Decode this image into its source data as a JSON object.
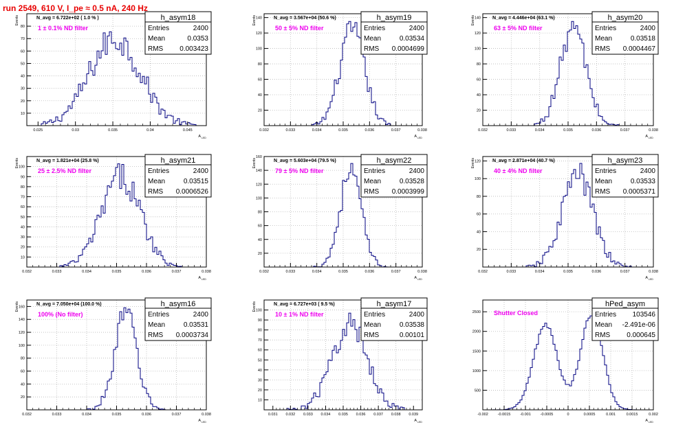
{
  "run_title": "run 2549,   610 V, I_pe ≈ 0.5 nA, 240 Hz",
  "colors": {
    "title": "#e80000",
    "annotation": "#ee00ee",
    "histogram": "#000080",
    "grid": "#b8b8b8",
    "frame": "#000000"
  },
  "stat_labels": {
    "entries": "Entries",
    "mean": "Mean",
    "rms": "RMS"
  },
  "chart_data": [
    {
      "type": "histogram",
      "name": "h_asym18",
      "ylabel": "Events",
      "xlabel": "A",
      "xlabel_sub": "LED",
      "nlabel": "N_avg = 6.722e+02 ( 1.0 % )",
      "filter": "1 ± 0.1% ND filter",
      "xlim": [
        0.0235,
        0.0475
      ],
      "xticks": [
        "0.025",
        "0.03",
        "0.035",
        "0.04",
        "0.045"
      ],
      "xtick_values": [
        0.025,
        0.03,
        0.035,
        0.04,
        0.045
      ],
      "ylim": [
        0,
        90
      ],
      "yticks": [
        "10",
        "20",
        "30",
        "40",
        "50",
        "60",
        "70",
        "80"
      ],
      "ytick_values": [
        10,
        20,
        30,
        40,
        50,
        60,
        70,
        80
      ],
      "entries": "2400",
      "mean": "0.0353",
      "rms": "0.003423",
      "grid": true,
      "shape": [
        {
          "mu": 0.0353,
          "sigma": 0.0034,
          "amp": 70
        }
      ],
      "max_y": 80,
      "x_range": [
        0.0255,
        0.0465
      ]
    },
    {
      "type": "histogram",
      "name": "h_asym19",
      "ylabel": "Events",
      "xlabel": "A",
      "xlabel_sub": "LED",
      "nlabel": "N_avg = 3.567e+04 (50.6 %)",
      "filter": "50 ± 5% ND filter",
      "xlim": [
        0.032,
        0.038
      ],
      "xticks": [
        "0.032",
        "0.033",
        "0.034",
        "0.035",
        "0.036",
        "0.037",
        "0.038"
      ],
      "xtick_values": [
        0.032,
        0.033,
        0.034,
        0.035,
        0.036,
        0.037,
        0.038
      ],
      "ylim": [
        0,
        145
      ],
      "yticks": [
        "20",
        "40",
        "60",
        "80",
        "100",
        "120",
        "140"
      ],
      "ytick_values": [
        20,
        40,
        60,
        80,
        100,
        120,
        140
      ],
      "entries": "2400",
      "mean": "0.03534",
      "rms": "0.0004699",
      "grid": true,
      "shape": [
        {
          "mu": 0.03534,
          "sigma": 0.00047,
          "amp": 124
        }
      ],
      "max_y": 135,
      "x_range": [
        0.0338,
        0.0368
      ]
    },
    {
      "type": "histogram",
      "name": "h_asym20",
      "ylabel": "Events",
      "xlabel": "A",
      "xlabel_sub": "LED",
      "nlabel": "N_avg = 4.446e+04 (63.1 %)",
      "filter": "63 ± 5% ND filter",
      "xlim": [
        0.032,
        0.038
      ],
      "xticks": [
        "0.032",
        "0.033",
        "0.034",
        "0.035",
        "0.036",
        "0.037",
        "0.038"
      ],
      "xtick_values": [
        0.032,
        0.033,
        0.034,
        0.035,
        0.036,
        0.037,
        0.038
      ],
      "ylim": [
        0,
        145
      ],
      "yticks": [
        "20",
        "40",
        "60",
        "80",
        "100",
        "120",
        "140"
      ],
      "ytick_values": [
        20,
        40,
        60,
        80,
        100,
        120,
        140
      ],
      "entries": "2400",
      "mean": "0.03518",
      "rms": "0.0004467",
      "grid": true,
      "shape": [
        {
          "mu": 0.03518,
          "sigma": 0.00045,
          "amp": 128
        }
      ],
      "max_y": 135,
      "x_range": [
        0.0338,
        0.0368
      ]
    },
    {
      "type": "histogram",
      "name": "h_asym21",
      "ylabel": "Events",
      "xlabel": "A",
      "xlabel_sub": "LED",
      "nlabel": "N_avg = 1.821e+04 (25.8 %)",
      "filter": "25 ± 2.5% ND filter",
      "xlim": [
        0.032,
        0.038
      ],
      "xticks": [
        "0.032",
        "0.033",
        "0.034",
        "0.035",
        "0.036",
        "0.037",
        "0.038"
      ],
      "xtick_values": [
        0.032,
        0.033,
        0.034,
        0.035,
        0.036,
        0.037,
        0.038
      ],
      "ylim": [
        0,
        110
      ],
      "yticks": [
        "10",
        "20",
        "30",
        "40",
        "50",
        "60",
        "70",
        "80",
        "90",
        "100"
      ],
      "ytick_values": [
        10,
        20,
        30,
        40,
        50,
        60,
        70,
        80,
        90,
        100
      ],
      "entries": "2400",
      "mean": "0.03515",
      "rms": "0.0006526",
      "grid": true,
      "shape": [
        {
          "mu": 0.03515,
          "sigma": 0.00065,
          "amp": 90
        }
      ],
      "max_y": 105,
      "x_range": [
        0.0331,
        0.0372
      ]
    },
    {
      "type": "histogram",
      "name": "h_asym22",
      "ylabel": "Events",
      "xlabel": "A",
      "xlabel_sub": "LED",
      "nlabel": "N_avg = 5.603e+04 (79.5 %)",
      "filter": "79 ± 5% ND filter",
      "xlim": [
        0.032,
        0.038
      ],
      "xticks": [
        "0.032",
        "0.033",
        "0.034",
        "0.035",
        "0.036",
        "0.037",
        "0.038"
      ],
      "xtick_values": [
        0.032,
        0.033,
        0.034,
        0.035,
        0.036,
        0.037,
        0.038
      ],
      "ylim": [
        0,
        160
      ],
      "yticks": [
        "20",
        "40",
        "60",
        "80",
        "100",
        "120",
        "140",
        "160"
      ],
      "ytick_values": [
        20,
        40,
        60,
        80,
        100,
        120,
        140,
        160
      ],
      "entries": "2400",
      "mean": "0.03528",
      "rms": "0.0003999",
      "grid": true,
      "shape": [
        {
          "mu": 0.03528,
          "sigma": 0.0004,
          "amp": 140
        }
      ],
      "max_y": 150,
      "x_range": [
        0.0339,
        0.0367
      ]
    },
    {
      "type": "histogram",
      "name": "h_asym23",
      "ylabel": "Events",
      "xlabel": "A",
      "xlabel_sub": "LED",
      "nlabel": "N_avg = 2.871e+04 (40.7 %)",
      "filter": "40 ± 4% ND filter",
      "xlim": [
        0.032,
        0.038
      ],
      "xticks": [
        "0.032",
        "0.033",
        "0.034",
        "0.035",
        "0.036",
        "0.037",
        "0.038"
      ],
      "xtick_values": [
        0.032,
        0.033,
        0.034,
        0.035,
        0.036,
        0.037,
        0.038
      ],
      "ylim": [
        0,
        125
      ],
      "yticks": [
        "20",
        "40",
        "60",
        "80",
        "100",
        "120"
      ],
      "ytick_values": [
        20,
        40,
        60,
        80,
        100,
        120
      ],
      "entries": "2400",
      "mean": "0.03533",
      "rms": "0.0005371",
      "grid": true,
      "shape": [
        {
          "mu": 0.03533,
          "sigma": 0.00054,
          "amp": 105
        }
      ],
      "max_y": 118,
      "x_range": [
        0.0335,
        0.0372
      ]
    },
    {
      "type": "histogram",
      "name": "h_asym16",
      "ylabel": "Events",
      "xlabel": "A",
      "xlabel_sub": "LED",
      "nlabel": "N_avg = 7.050e+04 (100.0 %)",
      "filter": "100% (No filter)",
      "xlim": [
        0.032,
        0.038
      ],
      "xticks": [
        "0.032",
        "0.033",
        "0.034",
        "0.035",
        "0.036",
        "0.037",
        "0.038"
      ],
      "xtick_values": [
        0.032,
        0.033,
        0.034,
        0.035,
        0.036,
        0.037,
        0.038
      ],
      "ylim": [
        0,
        170
      ],
      "yticks": [
        "20",
        "40",
        "60",
        "80",
        "100",
        "120",
        "140",
        "160"
      ],
      "ytick_values": [
        20,
        40,
        60,
        80,
        100,
        120,
        140,
        160
      ],
      "entries": "2400",
      "mean": "0.03531",
      "rms": "0.0003734",
      "grid": true,
      "shape": [
        {
          "mu": 0.03531,
          "sigma": 0.00037,
          "amp": 150
        }
      ],
      "max_y": 158,
      "x_range": [
        0.034,
        0.0366
      ]
    },
    {
      "type": "histogram",
      "name": "h_asym17",
      "ylabel": "Events",
      "xlabel": "A",
      "xlabel_sub": "LED",
      "nlabel": "N_avg = 6.727e+03 ( 9.5 %)",
      "filter": "10 ± 1% ND filter",
      "xlim": [
        0.0305,
        0.0395
      ],
      "xticks": [
        "0.031",
        "0.032",
        "0.033",
        "0.034",
        "0.035",
        "0.036",
        "0.037",
        "0.038",
        "0.039"
      ],
      "xtick_values": [
        0.031,
        0.032,
        0.033,
        0.034,
        0.035,
        0.036,
        0.037,
        0.038,
        0.039
      ],
      "ylim": [
        0,
        110
      ],
      "yticks": [
        "10",
        "20",
        "30",
        "40",
        "50",
        "60",
        "70",
        "80",
        "90",
        "100"
      ],
      "ytick_values": [
        10,
        20,
        30,
        40,
        50,
        60,
        70,
        80,
        90,
        100
      ],
      "entries": "2400",
      "mean": "0.03538",
      "rms": "0.00101",
      "grid": true,
      "shape": [
        {
          "mu": 0.03538,
          "sigma": 0.00101,
          "amp": 85
        }
      ],
      "max_y": 100,
      "x_range": [
        0.0318,
        0.0385
      ]
    },
    {
      "type": "histogram",
      "name": "hPed_asym",
      "ylabel": "",
      "xlabel": "A",
      "xlabel_sub": "LED",
      "nlabel": "",
      "filter": "Shutter Closed",
      "xlim": [
        -0.002,
        0.002
      ],
      "xticks": [
        "-0.002",
        "-0.0015",
        "-0.001",
        "-0.0005",
        "0",
        "0.0005",
        "0.001",
        "0.0015",
        "0.002"
      ],
      "xtick_values": [
        -0.002,
        -0.0015,
        -0.001,
        -0.0005,
        0,
        0.0005,
        0.001,
        0.0015,
        0.002
      ],
      "ylim": [
        0,
        2800
      ],
      "yticks": [
        "500",
        "1000",
        "1500",
        "2000",
        "2500"
      ],
      "ytick_values": [
        500,
        1000,
        1500,
        2000,
        2500
      ],
      "entries": "103546",
      "mean": "-2.491e-06",
      "rms": "0.000645",
      "grid": true,
      "shape": [
        {
          "mu": -0.00053,
          "sigma": 0.00028,
          "amp": 2150
        },
        {
          "mu": 0.00055,
          "sigma": 0.00026,
          "amp": 2450
        }
      ],
      "max_y": 2700,
      "x_range": [
        -0.00175,
        0.00175
      ]
    }
  ]
}
